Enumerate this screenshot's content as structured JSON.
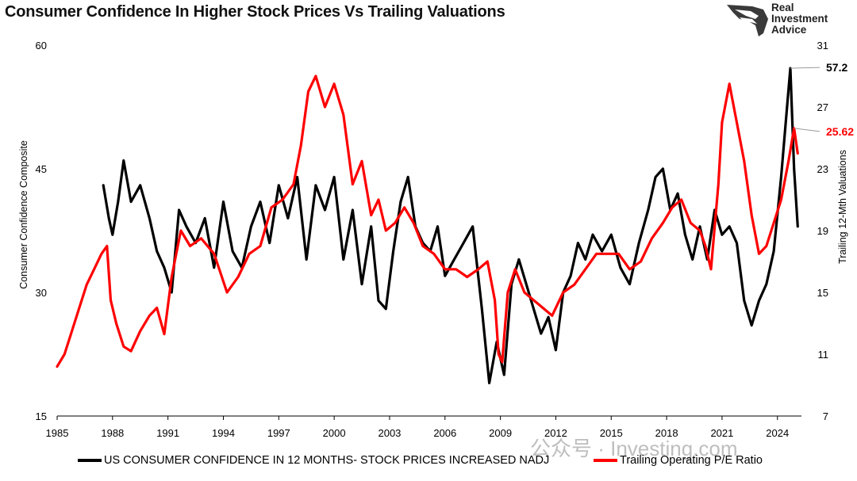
{
  "header": {
    "title": "Consumer Confidence In Higher Stock Prices Vs Trailing Valuations"
  },
  "logo": {
    "line1": "Real",
    "line2": "Investment",
    "line3": "Advice"
  },
  "watermark": {
    "text": "公众号 · Investing.com"
  },
  "chart_data": {
    "type": "line",
    "title": "Consumer Confidence In Higher Stock Prices Vs Trailing Valuations",
    "xlim": [
      1985,
      2025.3
    ],
    "x_ticks": [
      "1985",
      "1988",
      "1991",
      "1994",
      "1997",
      "2000",
      "2003",
      "2006",
      "2009",
      "2012",
      "2015",
      "2018",
      "2021",
      "2024"
    ],
    "y_left": {
      "label": "Consumer Confidence Composite",
      "lim": [
        15,
        60
      ],
      "ticks": [
        "15",
        "30",
        "45",
        "60"
      ]
    },
    "y_right": {
      "label": "Trailing 12-Mth Valuations",
      "lim": [
        7,
        31
      ],
      "ticks": [
        "7",
        "11",
        "15",
        "19",
        "23",
        "27",
        "31"
      ]
    },
    "grid": false,
    "legend_position": "bottom",
    "colors": {
      "confidence": "#000000",
      "pe": "#ff0000",
      "annotation_conf": "#000000",
      "annotation_pe": "#ff0000"
    },
    "series": [
      {
        "name": "US CONSUMER CONFIDENCE IN 12 MONTHS- STOCK PRICES INCREASED NADJ",
        "axis": "left",
        "x": [
          1987.5,
          1987.8,
          1988.0,
          1988.3,
          1988.6,
          1989.0,
          1989.5,
          1990.0,
          1990.4,
          1990.8,
          1991.2,
          1991.6,
          1992.0,
          1992.5,
          1993.0,
          1993.5,
          1994.0,
          1994.5,
          1995.0,
          1995.5,
          1996.0,
          1996.5,
          1997.0,
          1997.5,
          1998.0,
          1998.5,
          1999.0,
          1999.5,
          2000.0,
          2000.5,
          2001.0,
          2001.5,
          2002.0,
          2002.4,
          2002.8,
          2003.2,
          2003.6,
          2004.0,
          2004.4,
          2004.8,
          2005.2,
          2005.6,
          2006.0,
          2006.5,
          2007.0,
          2007.5,
          2008.0,
          2008.4,
          2008.8,
          2009.2,
          2009.6,
          2010.0,
          2010.4,
          2010.8,
          2011.2,
          2011.6,
          2012.0,
          2012.4,
          2012.8,
          2013.2,
          2013.6,
          2014.0,
          2014.5,
          2015.0,
          2015.5,
          2016.0,
          2016.5,
          2017.0,
          2017.4,
          2017.8,
          2018.2,
          2018.6,
          2019.0,
          2019.4,
          2019.8,
          2020.2,
          2020.6,
          2021.0,
          2021.4,
          2021.8,
          2022.2,
          2022.6,
          2023.0,
          2023.4,
          2023.8,
          2024.2,
          2024.5,
          2024.7,
          2024.9,
          2025.1
        ],
        "values": [
          43,
          39,
          37,
          41,
          46,
          41,
          43,
          39,
          35,
          33,
          30,
          40,
          38,
          36,
          39,
          33,
          41,
          35,
          33,
          38,
          41,
          36,
          43,
          39,
          44,
          34,
          43,
          40,
          44,
          34,
          40,
          31,
          38,
          29,
          28,
          35,
          41,
          44,
          38,
          36,
          35,
          38,
          32,
          34,
          36,
          38,
          28,
          19,
          24,
          20,
          31,
          34,
          31,
          28,
          25,
          27,
          23,
          30,
          32,
          36,
          34,
          37,
          35,
          37,
          33,
          31,
          36,
          40,
          44,
          45,
          40,
          42,
          37,
          34,
          38,
          34,
          40,
          37,
          38,
          36,
          29,
          26,
          29,
          31,
          35,
          44,
          52,
          57.2,
          45,
          38
        ]
      },
      {
        "name": "Trailing Operating P/E Ratio",
        "axis": "right",
        "x": [
          1985.0,
          1985.4,
          1985.8,
          1986.2,
          1986.6,
          1987.0,
          1987.4,
          1987.7,
          1987.9,
          1988.2,
          1988.6,
          1989.0,
          1989.5,
          1990.0,
          1990.4,
          1990.8,
          1991.2,
          1991.7,
          1992.2,
          1992.8,
          1993.5,
          1994.2,
          1994.8,
          1995.4,
          1996.0,
          1996.6,
          1997.2,
          1997.8,
          1998.2,
          1998.6,
          1999.0,
          1999.5,
          2000.0,
          2000.5,
          2001.0,
          2001.5,
          2002.0,
          2002.4,
          2002.8,
          2003.3,
          2003.8,
          2004.3,
          2004.8,
          2005.4,
          2006.0,
          2006.6,
          2007.2,
          2007.8,
          2008.3,
          2008.7,
          2008.9,
          2009.1,
          2009.4,
          2009.8,
          2010.3,
          2010.8,
          2011.3,
          2011.8,
          2012.4,
          2013.0,
          2013.6,
          2014.2,
          2014.8,
          2015.4,
          2016.0,
          2016.6,
          2017.2,
          2017.8,
          2018.3,
          2018.8,
          2019.3,
          2019.8,
          2020.1,
          2020.4,
          2020.8,
          2021.0,
          2021.4,
          2021.8,
          2022.2,
          2022.6,
          2023.0,
          2023.4,
          2023.8,
          2024.2,
          2024.6,
          2024.9,
          2025.1
        ],
        "values": [
          10.2,
          11.0,
          12.5,
          14.0,
          15.5,
          16.5,
          17.5,
          18.0,
          14.5,
          13.0,
          11.5,
          11.2,
          12.5,
          13.5,
          14.0,
          12.3,
          16.0,
          19.0,
          18.0,
          18.5,
          17.5,
          15.0,
          16.0,
          17.5,
          18.0,
          20.5,
          21.0,
          22.0,
          24.5,
          28.0,
          29.0,
          27.0,
          28.5,
          26.5,
          22.0,
          23.5,
          20.0,
          21.0,
          19.0,
          19.5,
          20.5,
          19.5,
          18.0,
          17.5,
          16.5,
          16.5,
          16.0,
          16.5,
          17.0,
          14.5,
          11.0,
          10.5,
          15.0,
          16.5,
          15.0,
          14.5,
          14.0,
          13.5,
          15.0,
          15.5,
          16.5,
          17.5,
          17.5,
          17.5,
          16.5,
          17.0,
          18.5,
          19.5,
          20.5,
          21.0,
          19.5,
          19.0,
          18.0,
          16.5,
          22.0,
          26.0,
          28.5,
          26.0,
          23.5,
          20.0,
          17.5,
          18.0,
          19.5,
          21.0,
          23.5,
          25.62,
          24.0
        ]
      }
    ],
    "annotations": [
      {
        "text": "57.2",
        "series": "US CONSUMER CONFIDENCE IN 12 MONTHS- STOCK PRICES INCREASED NADJ",
        "axis": "left",
        "value": 57.2
      },
      {
        "text": "25.62",
        "series": "Trailing Operating P/E Ratio",
        "axis": "right",
        "value": 25.62
      }
    ]
  }
}
